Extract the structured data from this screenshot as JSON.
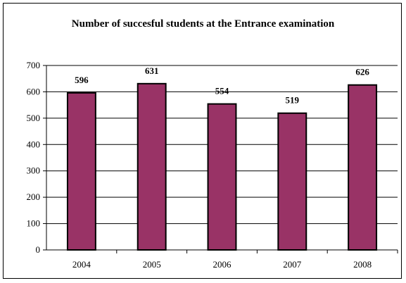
{
  "chart_data": {
    "type": "bar",
    "title": "Number of succesful students at the Entrance examination",
    "xlabel": "",
    "ylabel": "",
    "categories": [
      "2004",
      "2005",
      "2006",
      "2007",
      "2008"
    ],
    "values": [
      596,
      631,
      554,
      519,
      626
    ],
    "ylim": [
      0,
      700
    ],
    "yticks": [
      0,
      100,
      200,
      300,
      400,
      500,
      600,
      700
    ],
    "grid": true,
    "legend": "none",
    "bar_color": "#993366"
  }
}
